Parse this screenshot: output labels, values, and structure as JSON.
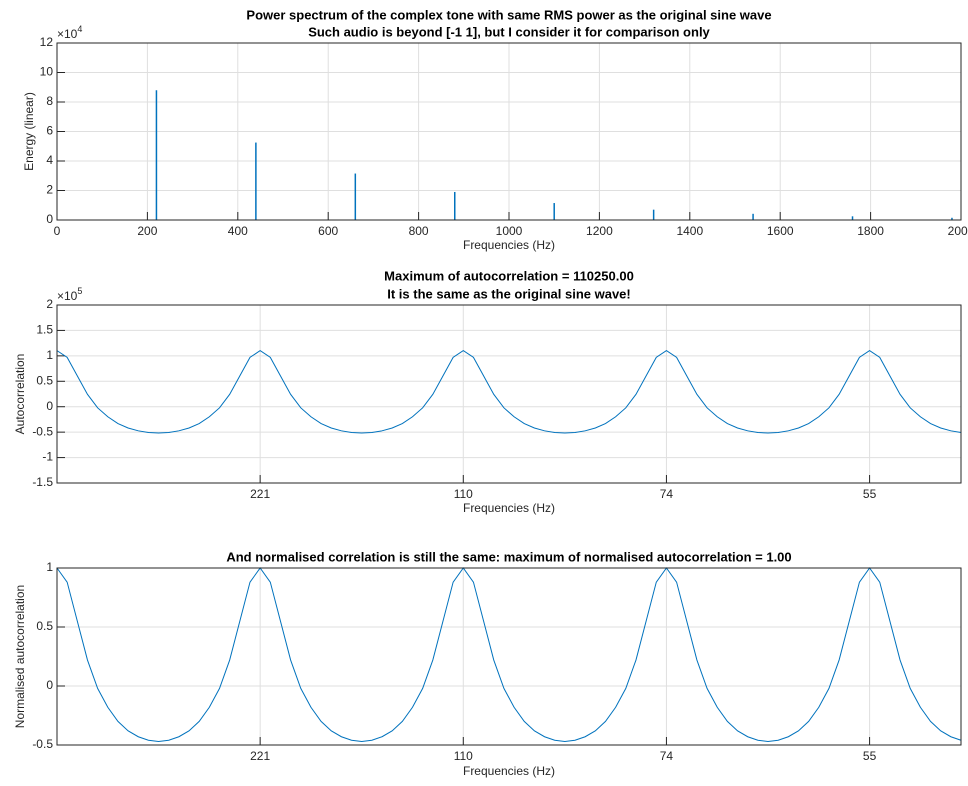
{
  "chart_data": [
    {
      "type": "stem",
      "title": [
        "Power spectrum of the complex tone with same RMS power as the original sine wave",
        "Such audio is beyond [-1 1], but I consider it for comparison only"
      ],
      "x_label": "Frequencies (Hz)",
      "y_label": "Energy (linear)",
      "y_exponent_base": "×10",
      "y_exponent": "4",
      "x": [
        220,
        440,
        660,
        880,
        1100,
        1320,
        1540,
        1760,
        1980
      ],
      "values": [
        88000,
        52500,
        31500,
        19000,
        11500,
        7000,
        4200,
        2500,
        1500
      ],
      "color": "#0072bd",
      "grid": true,
      "xlim": [
        0,
        2000
      ],
      "xticks": [
        0,
        200,
        400,
        600,
        800,
        1000,
        1200,
        1400,
        1600,
        1800,
        2000
      ],
      "ylim": [
        0,
        120000
      ],
      "yticks": [
        0,
        {
          "value": 20000,
          "label": "2"
        },
        {
          "value": 40000,
          "label": "4"
        },
        {
          "value": 60000,
          "label": "6"
        },
        {
          "value": 80000,
          "label": "8"
        },
        {
          "value": 100000,
          "label": "10"
        },
        {
          "value": 120000,
          "label": "12"
        }
      ]
    },
    {
      "type": "line",
      "title": [
        "Maximum of autocorrelation = 110250.00",
        "It is the same as the original sine wave!"
      ],
      "x_label": "Frequencies (Hz)",
      "y_label": "Autocorrelation",
      "y_exponent_base": "×10",
      "y_exponent": "5",
      "x": [
        0,
        10,
        20,
        30,
        40,
        50,
        60,
        70,
        80,
        90,
        100,
        110,
        120,
        130,
        140,
        150,
        160,
        170,
        180,
        190,
        200,
        210,
        220,
        230,
        240,
        250,
        260,
        270,
        280,
        290,
        300,
        310,
        320,
        330,
        340,
        350,
        360,
        370,
        380,
        390,
        400,
        410,
        420,
        430,
        440,
        450,
        460,
        470,
        480,
        490,
        500,
        510,
        520,
        530,
        540,
        550,
        560,
        570,
        580,
        590,
        600,
        610,
        620,
        630,
        640,
        650,
        660,
        670,
        680,
        690,
        700,
        710,
        720,
        730,
        740,
        750,
        760,
        770,
        780,
        790,
        800,
        810,
        820,
        830,
        840,
        850,
        860,
        870,
        880,
        890
      ],
      "values": [
        110250,
        97000,
        60600,
        24300,
        -2200,
        -19800,
        -33100,
        -41900,
        -47400,
        -50700,
        -51800,
        -50700,
        -47400,
        -41900,
        -33100,
        -19800,
        -2200,
        24300,
        60600,
        97000,
        110250,
        97000,
        60600,
        24300,
        -2200,
        -19800,
        -33100,
        -41900,
        -47400,
        -50700,
        -51800,
        -50700,
        -47400,
        -41900,
        -33100,
        -19800,
        -2200,
        24300,
        60600,
        97000,
        110250,
        97000,
        60600,
        24300,
        -2200,
        -19800,
        -33100,
        -41900,
        -47400,
        -50700,
        -51800,
        -50700,
        -47400,
        -41900,
        -33100,
        -19800,
        -2200,
        24300,
        60600,
        97000,
        110250,
        97000,
        60600,
        24300,
        -2200,
        -19800,
        -33100,
        -41900,
        -47400,
        -50700,
        -51800,
        -50700,
        -47400,
        -41900,
        -33100,
        -19800,
        -2200,
        24300,
        60600,
        97000,
        110250,
        97000,
        60600,
        24300,
        -2200,
        -19800,
        -33100,
        -41900,
        -47400,
        -50700
      ],
      "color": "#0072bd",
      "grid": true,
      "xlim": [
        0,
        890
      ],
      "xticks": [
        {
          "value": 200,
          "label": "221"
        },
        {
          "value": 400,
          "label": "110"
        },
        {
          "value": 600,
          "label": "74"
        },
        {
          "value": 800,
          "label": "55"
        }
      ],
      "ylim": [
        -150000,
        200000
      ],
      "yticks": [
        {
          "value": -150000,
          "label": "-1.5"
        },
        {
          "value": -100000,
          "label": "-1"
        },
        {
          "value": -50000,
          "label": "-0.5"
        },
        0,
        {
          "value": 50000,
          "label": "0.5"
        },
        {
          "value": 100000,
          "label": "1"
        },
        {
          "value": 150000,
          "label": "1.5"
        },
        {
          "value": 200000,
          "label": "2"
        }
      ]
    },
    {
      "type": "line",
      "title": [
        "And normalised correlation is still the same: maximum of normalised autocorrelation = 1.00"
      ],
      "x_label": "Frequencies (Hz)",
      "y_label": "Normalised autocorrelation",
      "x": [
        0,
        10,
        20,
        30,
        40,
        50,
        60,
        70,
        80,
        90,
        100,
        110,
        120,
        130,
        140,
        150,
        160,
        170,
        180,
        190,
        200,
        210,
        220,
        230,
        240,
        250,
        260,
        270,
        280,
        290,
        300,
        310,
        320,
        330,
        340,
        350,
        360,
        370,
        380,
        390,
        400,
        410,
        420,
        430,
        440,
        450,
        460,
        470,
        480,
        490,
        500,
        510,
        520,
        530,
        540,
        550,
        560,
        570,
        580,
        590,
        600,
        610,
        620,
        630,
        640,
        650,
        660,
        670,
        680,
        690,
        700,
        710,
        720,
        730,
        740,
        750,
        760,
        770,
        780,
        790,
        800,
        810,
        820,
        830,
        840,
        850,
        860,
        870,
        880,
        890
      ],
      "values": [
        1,
        0.88,
        0.55,
        0.22,
        -0.02,
        -0.18,
        -0.3,
        -0.38,
        -0.43,
        -0.46,
        -0.47,
        -0.46,
        -0.43,
        -0.38,
        -0.3,
        -0.18,
        -0.02,
        0.22,
        0.55,
        0.88,
        1,
        0.88,
        0.55,
        0.22,
        -0.02,
        -0.18,
        -0.3,
        -0.38,
        -0.43,
        -0.46,
        -0.47,
        -0.46,
        -0.43,
        -0.38,
        -0.3,
        -0.18,
        -0.02,
        0.22,
        0.55,
        0.88,
        1,
        0.88,
        0.55,
        0.22,
        -0.02,
        -0.18,
        -0.3,
        -0.38,
        -0.43,
        -0.46,
        -0.47,
        -0.46,
        -0.43,
        -0.38,
        -0.3,
        -0.18,
        -0.02,
        0.22,
        0.55,
        0.88,
        1,
        0.88,
        0.55,
        0.22,
        -0.02,
        -0.18,
        -0.3,
        -0.38,
        -0.43,
        -0.46,
        -0.47,
        -0.46,
        -0.43,
        -0.38,
        -0.3,
        -0.18,
        -0.02,
        0.22,
        0.55,
        0.88,
        1,
        0.88,
        0.55,
        0.22,
        -0.02,
        -0.18,
        -0.3,
        -0.38,
        -0.43,
        -0.46
      ],
      "color": "#0072bd",
      "grid": true,
      "xlim": [
        0,
        890
      ],
      "xticks": [
        {
          "value": 200,
          "label": "221"
        },
        {
          "value": 400,
          "label": "110"
        },
        {
          "value": 600,
          "label": "74"
        },
        {
          "value": 800,
          "label": "55"
        }
      ],
      "ylim": [
        -0.5,
        1
      ],
      "yticks": [
        -0.5,
        0,
        0.5,
        1
      ]
    }
  ]
}
